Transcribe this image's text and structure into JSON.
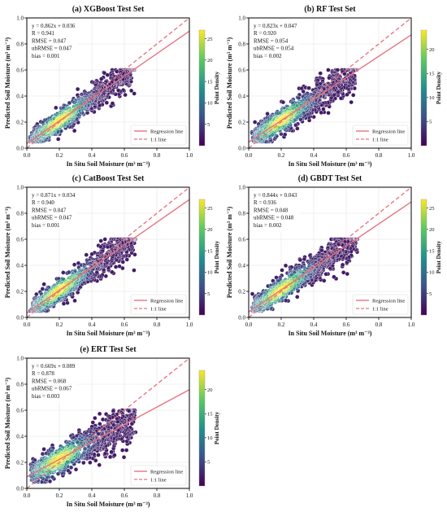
{
  "figure": {
    "colorbar_label": "Point Density",
    "legend": {
      "regression_label": "Regression line",
      "identity_label": "1:1 line"
    }
  },
  "colors": {
    "regression_line": "#e8737f",
    "identity_line": "#e8737f",
    "colormap": [
      "#440154",
      "#3b528b",
      "#21918c",
      "#5ec962",
      "#fde725"
    ]
  },
  "chart_data": [
    {
      "type": "scatter",
      "title": "(a) XGBoost Test Set",
      "xlabel": "In Situ Soil Moisture (m³ m⁻³)",
      "ylabel": "Predicted Soil Moisture (m³ m⁻³)",
      "xlim": [
        0.0,
        1.0
      ],
      "ylim": [
        0.0,
        1.0
      ],
      "xticks": [
        "0.0",
        "0.2",
        "0.4",
        "0.6",
        "0.8",
        "1.0"
      ],
      "yticks": [
        "0.0",
        "0.2",
        "0.4",
        "0.6",
        "0.8",
        "1.0"
      ],
      "stats": [
        "y = 0.862x + 0.036",
        "R = 0.941",
        "RMSE = 0.047",
        "ubRMSE = 0.047",
        "bias = 0.001"
      ],
      "regression": {
        "slope": 0.862,
        "intercept": 0.036
      },
      "colorbar_ticks": [
        5,
        10,
        15,
        20,
        25
      ],
      "colorbar_range": [
        0,
        27
      ],
      "scatter_spread": 0.085,
      "legend_position": "lower-right",
      "grid": true
    },
    {
      "type": "scatter",
      "title": "(b) RF Test Set",
      "xlabel": "In Situ Soil Moisture (m³ m⁻³)",
      "ylabel": "Predicted Soil Moisture (m³ m⁻³)",
      "xlim": [
        0.0,
        1.0
      ],
      "ylim": [
        0.0,
        1.0
      ],
      "xticks": [
        "0.0",
        "0.2",
        "0.4",
        "0.6",
        "0.8",
        "1.0"
      ],
      "yticks": [
        "0.0",
        "0.2",
        "0.4",
        "0.6",
        "0.8",
        "1.0"
      ],
      "stats": [
        "y = 0.823x + 0.047",
        "R = 0.920",
        "RMSE = 0.054",
        "ubRMSE = 0.054",
        "bias = 0.002"
      ],
      "regression": {
        "slope": 0.823,
        "intercept": 0.047
      },
      "colorbar_ticks": [
        5,
        10,
        15,
        20
      ],
      "colorbar_range": [
        0,
        24
      ],
      "scatter_spread": 0.095,
      "legend_position": "lower-right",
      "grid": true
    },
    {
      "type": "scatter",
      "title": "(c) CatBoost Test Set",
      "xlabel": "In Situ Soil Moisture (m³ m⁻³)",
      "ylabel": "Predicted Soil Moisture (m³ m⁻³)",
      "xlim": [
        0.0,
        1.0
      ],
      "ylim": [
        0.0,
        1.0
      ],
      "xticks": [
        "0.0",
        "0.2",
        "0.4",
        "0.6",
        "0.8",
        "1.0"
      ],
      "yticks": [
        "0.0",
        "0.2",
        "0.4",
        "0.6",
        "0.8",
        "1.0"
      ],
      "stats": [
        "y = 0.871x + 0.034",
        "R = 0.940",
        "RMSE = 0.047",
        "ubRMSE = 0.047",
        "bias = 0.001"
      ],
      "regression": {
        "slope": 0.871,
        "intercept": 0.034
      },
      "colorbar_ticks": [
        5,
        10,
        15,
        20,
        25
      ],
      "colorbar_range": [
        0,
        27
      ],
      "scatter_spread": 0.085,
      "legend_position": "lower-right",
      "grid": true
    },
    {
      "type": "scatter",
      "title": "(d) GBDT Test Set",
      "xlabel": "In Situ Soil Moisture (m³ m⁻³)",
      "ylabel": "Predicted Soil Moisture (m³ m⁻³)",
      "xlim": [
        0.0,
        1.0
      ],
      "ylim": [
        0.0,
        1.0
      ],
      "xticks": [
        "0.0",
        "0.2",
        "0.4",
        "0.6",
        "0.8",
        "1.0"
      ],
      "yticks": [
        "0.0",
        "0.2",
        "0.4",
        "0.6",
        "0.8",
        "1.0"
      ],
      "stats": [
        "y = 0.844x + 0.043",
        "R = 0.936",
        "RMSE = 0.048",
        "ubRMSE = 0.048",
        "bias = 0.002"
      ],
      "regression": {
        "slope": 0.844,
        "intercept": 0.043
      },
      "colorbar_ticks": [
        5,
        10,
        15,
        20,
        25
      ],
      "colorbar_range": [
        0,
        27
      ],
      "scatter_spread": 0.088,
      "legend_position": "lower-right",
      "grid": true
    },
    {
      "type": "scatter",
      "title": "(e) ERT Test Set",
      "xlabel": "In Situ Soil Moisture (m³ m⁻³)",
      "ylabel": "Predicted Soil Moisture (m³ m⁻³)",
      "xlim": [
        0.0,
        1.0
      ],
      "ylim": [
        0.0,
        1.0
      ],
      "xticks": [
        "0.0",
        "0.2",
        "0.4",
        "0.6",
        "0.8",
        "1.0"
      ],
      "yticks": [
        "0.0",
        "0.2",
        "0.4",
        "0.6",
        "0.8",
        "1.0"
      ],
      "stats": [
        "y = 0.669x + 0.089",
        "R = 0.878",
        "RMSE = 0.068",
        "ubRMSE = 0.067",
        "bias = 0.003"
      ],
      "regression": {
        "slope": 0.669,
        "intercept": 0.089
      },
      "colorbar_ticks": [
        5,
        10,
        15,
        20
      ],
      "colorbar_range": [
        0,
        24
      ],
      "scatter_spread": 0.105,
      "legend_position": "lower-right",
      "grid": true
    }
  ]
}
